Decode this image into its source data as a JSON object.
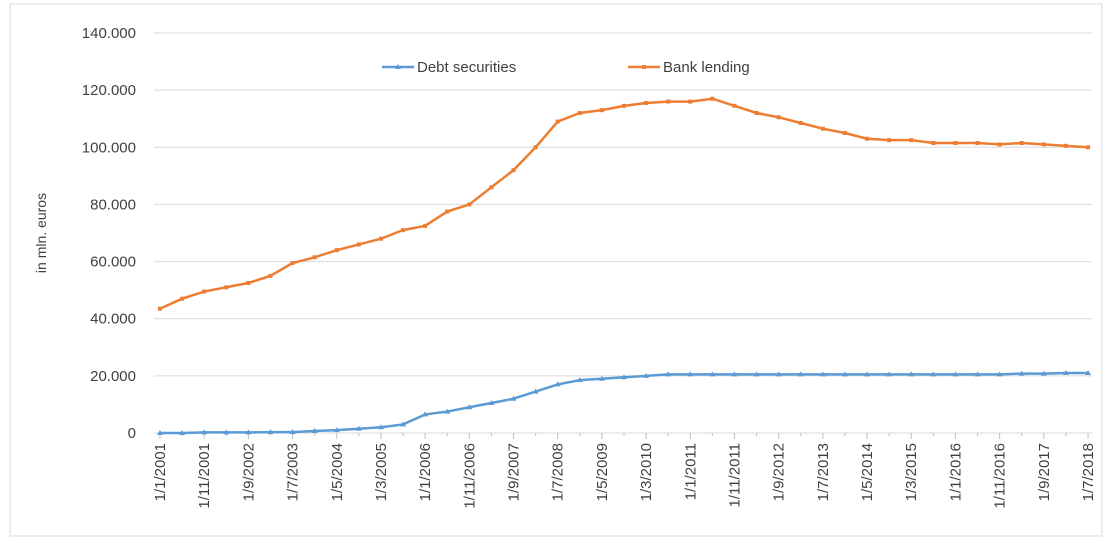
{
  "chart_data": {
    "type": "line",
    "y_label": "in mln. euros",
    "categories": [
      "1/1/2001",
      null,
      "1/11/2001",
      null,
      "1/9/2002",
      null,
      "1/7/2003",
      null,
      "1/5/2004",
      null,
      "1/3/2005",
      null,
      "1/1/2006",
      null,
      "1/11/2006",
      null,
      "1/9/2007",
      null,
      "1/7/2008",
      null,
      "1/5/2009",
      null,
      "1/3/2010",
      null,
      "1/1/2011",
      null,
      "1/11/2011",
      null,
      "1/9/2012",
      null,
      "1/7/2013",
      null,
      "1/5/2014",
      null,
      "1/3/2015",
      null,
      "1/1/2016",
      null,
      "1/11/2016",
      null,
      "1/9/2017",
      null,
      "1/7/2018"
    ],
    "series": [
      {
        "name": "Debt securities",
        "color": "#5b9bd5",
        "marker": "triangle",
        "values": [
          0,
          0,
          200,
          200,
          200,
          300,
          300,
          700,
          1000,
          1500,
          2000,
          3000,
          6500,
          7500,
          9000,
          10500,
          12000,
          14500,
          17000,
          18500,
          19000,
          19500,
          20000,
          20500,
          20500,
          20500,
          20500,
          20500,
          20500,
          20500,
          20500,
          20500,
          20500,
          20500,
          20500,
          20500,
          20500,
          20500,
          20500,
          20800,
          20800,
          21000,
          21000
        ]
      },
      {
        "name": "Bank lending",
        "color": "#ed7d31",
        "marker": "square",
        "values": [
          43500,
          47000,
          49500,
          51000,
          52500,
          55000,
          59500,
          61500,
          64000,
          66000,
          68000,
          71000,
          72500,
          77500,
          80000,
          86000,
          92000,
          100000,
          109000,
          112000,
          113000,
          114500,
          115500,
          116000,
          116000,
          117000,
          114500,
          112000,
          110500,
          108500,
          106500,
          105000,
          103000,
          102500,
          102500,
          101500,
          101500,
          101500,
          101000,
          101500,
          101000,
          100500,
          100000
        ]
      }
    ],
    "ylim": [
      0,
      140000
    ],
    "yticks": [
      0,
      {
        "value": 20000,
        "label": "20.000"
      },
      {
        "value": 40000,
        "label": "40.000"
      },
      {
        "value": 60000,
        "label": "60.000"
      },
      {
        "value": 80000,
        "label": "80.000"
      },
      {
        "value": 100000,
        "label": "100.000"
      },
      {
        "value": 120000,
        "label": "120.000"
      },
      {
        "value": 140000,
        "label": "140.000"
      }
    ],
    "grid": true,
    "legend": "top"
  }
}
